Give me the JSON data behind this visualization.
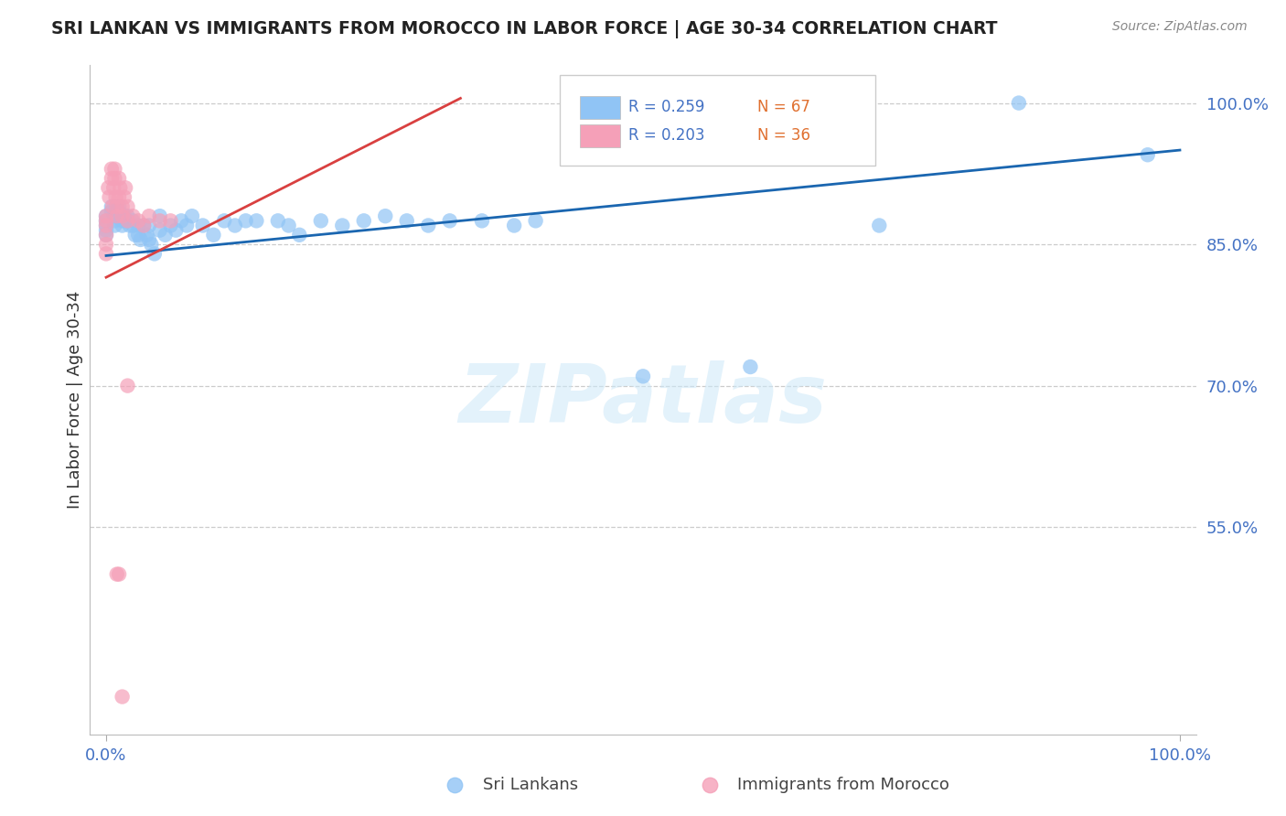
{
  "title": "SRI LANKAN VS IMMIGRANTS FROM MOROCCO IN LABOR FORCE | AGE 30-34 CORRELATION CHART",
  "source": "Source: ZipAtlas.com",
  "ylabel": "In Labor Force | Age 30-34",
  "x_range": [
    -0.015,
    1.015
  ],
  "y_range": [
    0.33,
    1.04
  ],
  "y_ticks": [
    0.55,
    0.7,
    0.85,
    1.0
  ],
  "y_tick_labels": [
    "55.0%",
    "70.0%",
    "85.0%",
    "100.0%"
  ],
  "sri_lanka_R": 0.259,
  "sri_lanka_N": 67,
  "morocco_R": 0.203,
  "morocco_N": 36,
  "sri_lanka_color": "#90c4f5",
  "morocco_color": "#f5a0b8",
  "sri_lanka_line_color": "#1a66b0",
  "morocco_line_color": "#d94040",
  "background_color": "#ffffff",
  "watermark_color": "#cce8f8",
  "grid_color": "#cccccc",
  "label_color": "#4472c4",
  "N_color": "#e07030",
  "title_color": "#222222",
  "source_color": "#888888",
  "legend_border_color": "#cccccc",
  "sri_lanka_x": [
    0.0,
    0.0,
    0.0,
    0.0,
    0.0,
    0.005,
    0.005,
    0.007,
    0.008,
    0.008,
    0.01,
    0.01,
    0.01,
    0.012,
    0.012,
    0.013,
    0.015,
    0.015,
    0.017,
    0.017,
    0.02,
    0.02,
    0.022,
    0.025,
    0.025,
    0.027,
    0.03,
    0.03,
    0.032,
    0.035,
    0.038,
    0.04,
    0.04,
    0.042,
    0.045,
    0.05,
    0.05,
    0.055,
    0.06,
    0.065,
    0.07,
    0.075,
    0.08,
    0.09,
    0.1,
    0.11,
    0.12,
    0.13,
    0.14,
    0.16,
    0.17,
    0.18,
    0.2,
    0.22,
    0.24,
    0.26,
    0.28,
    0.3,
    0.32,
    0.35,
    0.38,
    0.4,
    0.5,
    0.6,
    0.72,
    0.85,
    0.97
  ],
  "sri_lanka_y": [
    0.88,
    0.875,
    0.87,
    0.865,
    0.86,
    0.89,
    0.885,
    0.88,
    0.875,
    0.87,
    0.89,
    0.885,
    0.88,
    0.89,
    0.885,
    0.88,
    0.875,
    0.87,
    0.88,
    0.875,
    0.88,
    0.875,
    0.87,
    0.875,
    0.87,
    0.86,
    0.87,
    0.86,
    0.855,
    0.87,
    0.86,
    0.87,
    0.855,
    0.85,
    0.84,
    0.88,
    0.865,
    0.86,
    0.87,
    0.865,
    0.875,
    0.87,
    0.88,
    0.87,
    0.86,
    0.875,
    0.87,
    0.875,
    0.875,
    0.875,
    0.87,
    0.86,
    0.875,
    0.87,
    0.875,
    0.88,
    0.875,
    0.87,
    0.875,
    0.875,
    0.87,
    0.875,
    0.71,
    0.72,
    0.87,
    1.0,
    0.945
  ],
  "morocco_x": [
    0.0,
    0.0,
    0.0,
    0.0,
    0.0,
    0.0,
    0.002,
    0.003,
    0.005,
    0.005,
    0.006,
    0.007,
    0.008,
    0.008,
    0.009,
    0.01,
    0.01,
    0.012,
    0.012,
    0.013,
    0.015,
    0.015,
    0.017,
    0.018,
    0.02,
    0.02,
    0.025,
    0.03,
    0.035,
    0.04,
    0.05,
    0.06,
    0.01,
    0.012,
    0.015,
    0.02
  ],
  "morocco_y": [
    0.88,
    0.875,
    0.87,
    0.86,
    0.85,
    0.84,
    0.91,
    0.9,
    0.93,
    0.92,
    0.89,
    0.91,
    0.93,
    0.92,
    0.9,
    0.89,
    0.88,
    0.9,
    0.92,
    0.91,
    0.89,
    0.88,
    0.9,
    0.91,
    0.89,
    0.875,
    0.88,
    0.875,
    0.87,
    0.88,
    0.875,
    0.875,
    0.5,
    0.5,
    0.37,
    0.7
  ],
  "sri_line_x0": 0.0,
  "sri_line_x1": 1.0,
  "sri_line_y0": 0.838,
  "sri_line_y1": 0.95,
  "mor_line_x0": 0.0,
  "mor_line_x1": 0.33,
  "mor_line_y0": 0.815,
  "mor_line_y1": 1.005
}
